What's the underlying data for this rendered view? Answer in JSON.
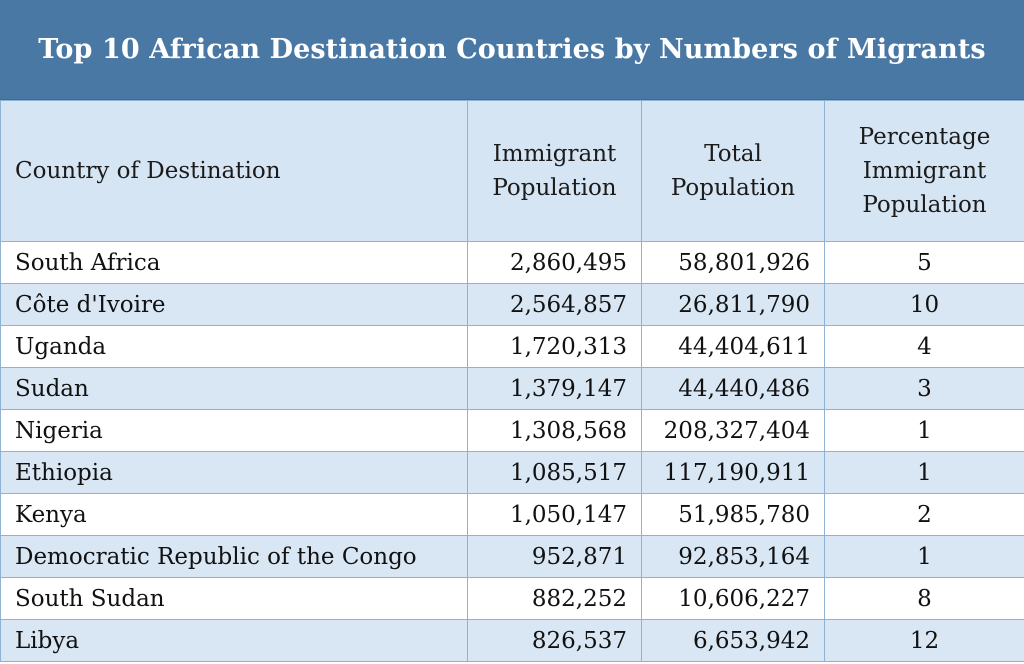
{
  "title": "Top 10 African Destination Countries by Numbers of Migrants",
  "headers": {
    "country": [
      "Country of Destination"
    ],
    "immigrant": [
      "Immigrant",
      "Population"
    ],
    "total": [
      "Total",
      "Population"
    ],
    "percentage": [
      "Percentage",
      "Immigrant",
      "Population"
    ]
  },
  "rows": [
    {
      "country": "South Africa",
      "immigrant": "2,860,495",
      "total": "58,801,926",
      "percentage": "5"
    },
    {
      "country": "Côte d'Ivoire",
      "immigrant": "2,564,857",
      "total": "26,811,790",
      "percentage": "10"
    },
    {
      "country": "Uganda",
      "immigrant": "1,720,313",
      "total": "44,404,611",
      "percentage": "4"
    },
    {
      "country": "Sudan",
      "immigrant": "1,379,147",
      "total": "44,440,486",
      "percentage": "3"
    },
    {
      "country": "Nigeria",
      "immigrant": "1,308,568",
      "total": "208,327,404",
      "percentage": "1"
    },
    {
      "country": "Ethiopia",
      "immigrant": "1,085,517",
      "total": "117,190,911",
      "percentage": "1"
    },
    {
      "country": "Kenya",
      "immigrant": "1,050,147",
      "total": "51,985,780",
      "percentage": "2"
    },
    {
      "country": "Democratic Republic of the Congo",
      "immigrant": "952,871",
      "total": "92,853,164",
      "percentage": "1"
    },
    {
      "country": "South Sudan",
      "immigrant": "882,252",
      "total": "10,606,227",
      "percentage": "8"
    },
    {
      "country": "Libya",
      "immigrant": "826,537",
      "total": "6,653,942",
      "percentage": "12"
    }
  ],
  "colors": {
    "title_background": "#4a78a4",
    "header_background": "#d6e5f3",
    "alt_row_background": "#d9e7f4",
    "border": "#8fb2d3"
  }
}
